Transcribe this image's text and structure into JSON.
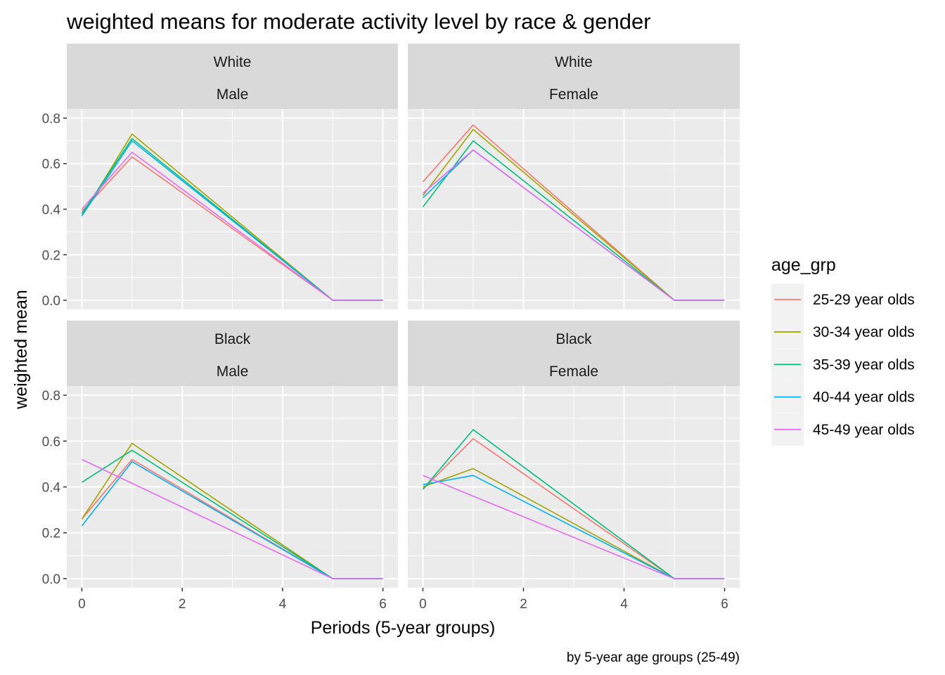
{
  "chart_data": {
    "type": "line",
    "title": "weighted means for moderate activity level by race & gender",
    "xlabel": "Periods (5-year groups)",
    "ylabel": "weighted mean",
    "caption": "by 5-year age groups (25-49)",
    "xlim": [
      -0.3,
      6.3
    ],
    "ylim": [
      -0.04,
      0.84
    ],
    "x_ticks": [
      0,
      2,
      4,
      6
    ],
    "x_tick_labels": [
      "0",
      "2",
      "4",
      "6"
    ],
    "y_ticks": [
      0,
      0.2,
      0.4,
      0.6,
      0.8
    ],
    "y_tick_labels": [
      "0.0",
      "0.2",
      "0.4",
      "0.6",
      "0.8"
    ],
    "grid": true,
    "legend": {
      "title": "age_grp",
      "position": "right"
    },
    "series_meta": [
      {
        "name": "25-29 year olds",
        "color": "#F8766D"
      },
      {
        "name": "30-34 year olds",
        "color": "#A3A500"
      },
      {
        "name": "35-39 year olds",
        "color": "#00BF7D"
      },
      {
        "name": "40-44 year olds",
        "color": "#00B0F6"
      },
      {
        "name": "45-49 year olds",
        "color": "#E76BF3"
      }
    ],
    "panels": [
      {
        "race": "White",
        "gender": "Male",
        "series": [
          {
            "name": "25-29 year olds",
            "x": [
              0,
              1,
              5,
              6
            ],
            "y": [
              0.39,
              0.63,
              0.0,
              0.0
            ]
          },
          {
            "name": "30-34 year olds",
            "x": [
              0,
              1,
              5,
              6
            ],
            "y": [
              0.37,
              0.73,
              0.0,
              0.0
            ]
          },
          {
            "name": "35-39 year olds",
            "x": [
              0,
              1,
              5,
              6
            ],
            "y": [
              0.38,
              0.71,
              0.0,
              0.0
            ]
          },
          {
            "name": "40-44 year olds",
            "x": [
              0,
              1,
              5,
              6
            ],
            "y": [
              0.37,
              0.7,
              0.0,
              0.0
            ]
          },
          {
            "name": "45-49 year olds",
            "x": [
              0,
              1,
              5,
              6
            ],
            "y": [
              0.4,
              0.65,
              0.0,
              0.0
            ]
          }
        ]
      },
      {
        "race": "White",
        "gender": "Female",
        "series": [
          {
            "name": "25-29 year olds",
            "x": [
              0,
              1,
              5,
              6
            ],
            "y": [
              0.52,
              0.77,
              0.0,
              0.0
            ]
          },
          {
            "name": "30-34 year olds",
            "x": [
              0,
              1,
              5,
              6
            ],
            "y": [
              0.46,
              0.75,
              0.0,
              0.0
            ]
          },
          {
            "name": "35-39 year olds",
            "x": [
              0,
              1,
              5,
              6
            ],
            "y": [
              0.41,
              0.7,
              0.0,
              0.0
            ]
          },
          {
            "name": "40-44 year olds",
            "x": [
              0,
              1,
              5,
              6
            ],
            "y": [
              0.45,
              0.66,
              0.0,
              0.0
            ]
          },
          {
            "name": "45-49 year olds",
            "x": [
              0,
              1,
              5,
              6
            ],
            "y": [
              0.47,
              0.66,
              0.0,
              0.0
            ]
          }
        ]
      },
      {
        "race": "Black",
        "gender": "Male",
        "series": [
          {
            "name": "25-29 year olds",
            "x": [
              0,
              1,
              5,
              6
            ],
            "y": [
              0.26,
              0.52,
              0.0,
              0.0
            ]
          },
          {
            "name": "30-34 year olds",
            "x": [
              0,
              1,
              5,
              6
            ],
            "y": [
              0.26,
              0.59,
              0.0,
              0.0
            ]
          },
          {
            "name": "35-39 year olds",
            "x": [
              0,
              1,
              5,
              6
            ],
            "y": [
              0.42,
              0.56,
              0.0,
              0.0
            ]
          },
          {
            "name": "40-44 year olds",
            "x": [
              0,
              1,
              5,
              6
            ],
            "y": [
              0.23,
              0.51,
              0.0,
              0.0
            ]
          },
          {
            "name": "45-49 year olds",
            "x": [
              0,
              5,
              6
            ],
            "y": [
              0.52,
              0.0,
              0.0
            ]
          }
        ]
      },
      {
        "race": "Black",
        "gender": "Female",
        "series": [
          {
            "name": "25-29 year olds",
            "x": [
              0,
              1,
              5,
              6
            ],
            "y": [
              0.39,
              0.61,
              0.0,
              0.0
            ]
          },
          {
            "name": "30-34 year olds",
            "x": [
              0,
              1,
              5,
              6
            ],
            "y": [
              0.4,
              0.48,
              0.0,
              0.0
            ]
          },
          {
            "name": "35-39 year olds",
            "x": [
              0,
              1,
              5,
              6
            ],
            "y": [
              0.39,
              0.65,
              0.0,
              0.0
            ]
          },
          {
            "name": "40-44 year olds",
            "x": [
              0,
              1,
              5,
              6
            ],
            "y": [
              0.41,
              0.45,
              0.0,
              0.0
            ]
          },
          {
            "name": "45-49 year olds",
            "x": [
              0,
              5,
              6
            ],
            "y": [
              0.45,
              0.0,
              0.0
            ]
          }
        ]
      }
    ]
  }
}
